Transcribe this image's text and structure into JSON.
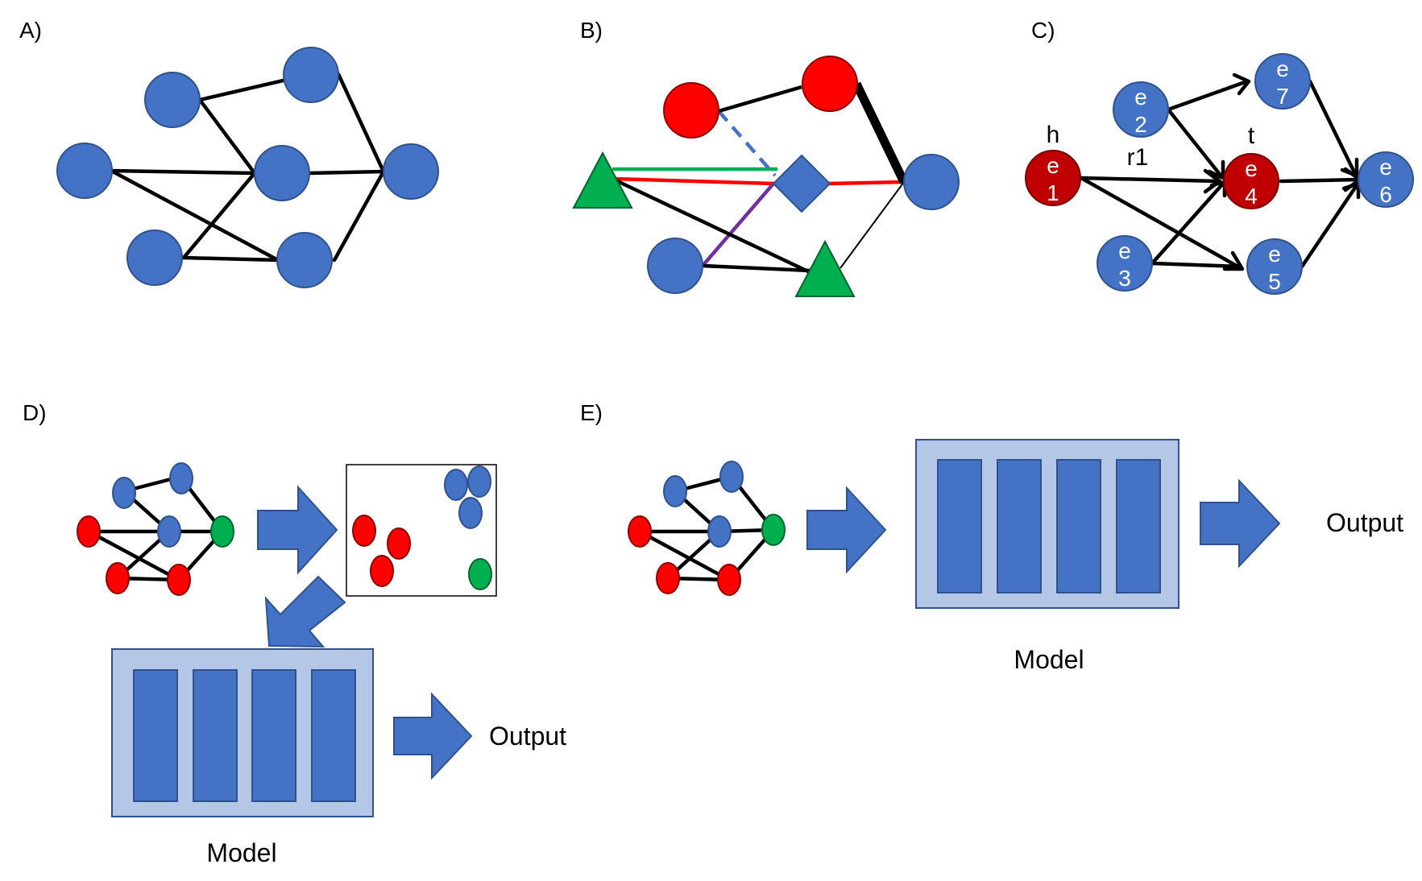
{
  "panels": {
    "A": {
      "label": "A)",
      "nodes": [
        {
          "id": "a1"
        },
        {
          "id": "a2"
        },
        {
          "id": "a3"
        },
        {
          "id": "a4"
        },
        {
          "id": "a5"
        },
        {
          "id": "a6"
        },
        {
          "id": "a7"
        }
      ],
      "edges": [
        [
          "a1",
          "a3"
        ],
        [
          "a2",
          "a3"
        ],
        [
          "a1",
          "a4"
        ],
        [
          "a3",
          "a4"
        ],
        [
          "a4",
          "a5"
        ],
        [
          "a3",
          "a6"
        ],
        [
          "a6",
          "a7"
        ],
        [
          "a4",
          "a7"
        ],
        [
          "a5",
          "a6"
        ]
      ]
    },
    "B": {
      "label": "B)"
    },
    "C": {
      "label": "C)",
      "head_label": "h",
      "tail_label": "t",
      "relation_label": "r1",
      "entities": [
        {
          "id": "e1",
          "letter": "e",
          "index": "1",
          "color": "#c00000"
        },
        {
          "id": "e2",
          "letter": "e",
          "index": "2",
          "color": "#4472c4"
        },
        {
          "id": "e3",
          "letter": "e",
          "index": "3",
          "color": "#4472c4"
        },
        {
          "id": "e4",
          "letter": "e",
          "index": "4",
          "color": "#c00000"
        },
        {
          "id": "e5",
          "letter": "e",
          "index": "5",
          "color": "#4472c4"
        },
        {
          "id": "e6",
          "letter": "e",
          "index": "6",
          "color": "#4472c4"
        },
        {
          "id": "e7",
          "letter": "e",
          "index": "7",
          "color": "#4472c4"
        }
      ]
    },
    "D": {
      "label": "D)",
      "model_label": "Model",
      "output_label": "Output"
    },
    "E": {
      "label": "E)",
      "model_label": "Model",
      "output_label": "Output"
    }
  },
  "colors": {
    "node_blue": "#4472c4",
    "node_red": "#ff0000",
    "dark_red": "#c00000",
    "green": "#00b050",
    "model_bg": "#b4c7e7",
    "edge": "#000000"
  }
}
